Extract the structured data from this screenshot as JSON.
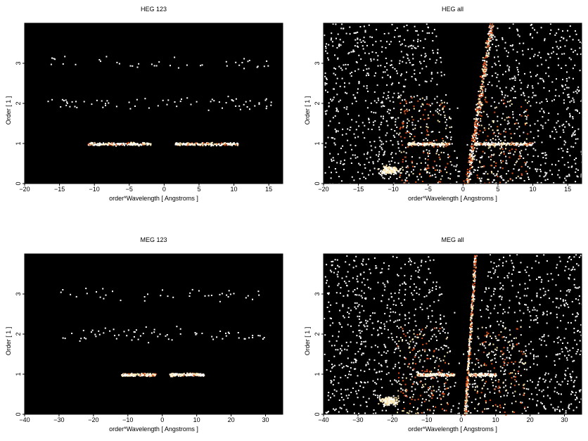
{
  "colors": {
    "background": "#000000",
    "low": "#ffffff",
    "mid": "#ffe8b0",
    "high": "#e0501a",
    "peak": "#9a2a0a"
  },
  "chart_data": [
    {
      "id": "heg123",
      "type": "heatmap",
      "title": "HEG 123",
      "xlabel": "order*Wavelength [ Angstroms ]",
      "ylabel": "Order [ 1 ]",
      "xlim": [
        -20,
        17
      ],
      "ylim": [
        0,
        4
      ],
      "xticks": [
        -20,
        -15,
        -10,
        -5,
        0,
        5,
        10,
        15
      ],
      "yticks": [
        0,
        1,
        2,
        3
      ],
      "features": {
        "order_bands": [
          {
            "order": 1,
            "x_range": [
              -11,
              10.5
            ],
            "gap": [
              -2,
              1.5
            ],
            "density": "high"
          },
          {
            "order": 2,
            "x_range": [
              -17,
              16
            ],
            "density": "low"
          },
          {
            "order": 3,
            "x_range": [
              -17,
              16
            ],
            "density": "very low"
          }
        ],
        "background_cones": false
      }
    },
    {
      "id": "hegall",
      "type": "heatmap",
      "title": "HEG all",
      "xlabel": "order*Wavelength [ Angstroms ]",
      "ylabel": "Order [ 1 ]",
      "xlim": [
        -20,
        17
      ],
      "ylim": [
        0,
        4
      ],
      "xticks": [
        -20,
        -15,
        -10,
        -5,
        0,
        5,
        10,
        15
      ],
      "yticks": [
        0,
        1,
        2,
        3
      ],
      "features": {
        "order_bands": [
          {
            "order": 1,
            "x_range": [
              -8,
              10
            ],
            "gap": [
              -2,
              1.5
            ],
            "density": "high"
          }
        ],
        "diagonal_streak": {
          "from": [
            0.5,
            0
          ],
          "to": [
            4,
            4
          ]
        },
        "background_cones": true
      }
    },
    {
      "id": "meg123",
      "type": "heatmap",
      "title": "MEG 123",
      "xlabel": "order*Wavelength [ Angstroms ]",
      "ylabel": "Order [ 1 ]",
      "xlim": [
        -40,
        35
      ],
      "ylim": [
        0,
        4
      ],
      "xticks": [
        -40,
        -30,
        -20,
        -10,
        0,
        10,
        20,
        30
      ],
      "yticks": [
        0,
        1,
        2,
        3
      ],
      "features": {
        "order_bands": [
          {
            "order": 1,
            "x_range": [
              -12,
              12
            ],
            "gap": [
              -2,
              2
            ],
            "density": "high"
          },
          {
            "order": 2,
            "x_range": [
              -30,
              30
            ],
            "density": "low"
          },
          {
            "order": 3,
            "x_range": [
              -30,
              30
            ],
            "density": "very low"
          }
        ],
        "background_cones": false
      }
    },
    {
      "id": "megall",
      "type": "heatmap",
      "title": "MEG all",
      "xlabel": "order*Wavelength [ Angstroms ]",
      "ylabel": "Order [ 1 ]",
      "xlim": [
        -40,
        35
      ],
      "ylim": [
        0,
        4
      ],
      "xticks": [
        -40,
        -30,
        -20,
        -10,
        0,
        10,
        20,
        30
      ],
      "yticks": [
        0,
        1,
        2,
        3
      ],
      "features": {
        "order_bands": [
          {
            "order": 1,
            "x_range": [
              -13,
              10
            ],
            "gap": [
              -2,
              2
            ],
            "density": "high"
          }
        ],
        "diagonal_streak": {
          "from": [
            1,
            0
          ],
          "to": [
            4,
            4
          ]
        },
        "background_cones": true
      }
    }
  ]
}
